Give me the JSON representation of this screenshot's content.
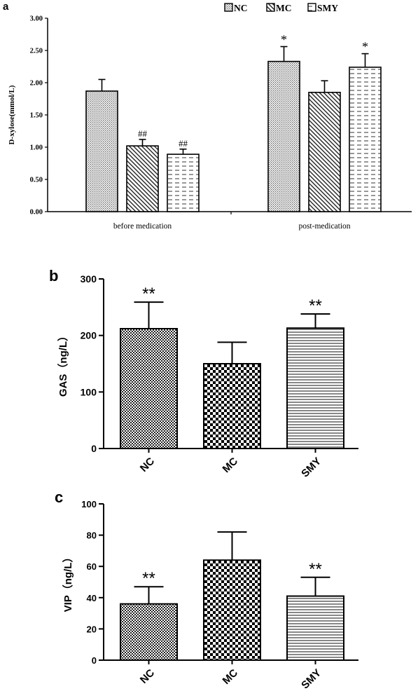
{
  "chart_data": [
    {
      "panel_label": "a",
      "type": "bar",
      "ylabel": "D-xylose(mmol/L)",
      "ylim": [
        0,
        3.0
      ],
      "yticks": [
        "0.00",
        "0.50",
        "1.00",
        "1.50",
        "2.00",
        "2.50",
        "3.00"
      ],
      "groups": [
        "before medication",
        "post-medication"
      ],
      "legend": [
        "NC",
        "MC",
        "SMY"
      ],
      "legend_position": "top-right",
      "series": [
        {
          "name": "NC",
          "values": [
            1.87,
            2.33
          ],
          "errors": [
            0.18,
            0.23
          ],
          "annotations": [
            "",
            "*"
          ]
        },
        {
          "name": "MC",
          "values": [
            1.02,
            1.85
          ],
          "errors": [
            0.1,
            0.18
          ],
          "annotations": [
            "##",
            ""
          ]
        },
        {
          "name": "SMY",
          "values": [
            0.89,
            2.24
          ],
          "errors": [
            0.08,
            0.21
          ],
          "annotations": [
            "##",
            "*"
          ]
        }
      ]
    },
    {
      "panel_label": "b",
      "type": "bar",
      "ylabel": "GAS（ng/L）",
      "ylim": [
        0,
        300
      ],
      "yticks": [
        "0",
        "100",
        "200",
        "300"
      ],
      "categories": [
        "NC",
        "MC",
        "SMY"
      ],
      "values": [
        212,
        150,
        213
      ],
      "errors": [
        47,
        38,
        25
      ],
      "annotations": [
        "**",
        "",
        "**"
      ]
    },
    {
      "panel_label": "c",
      "type": "bar",
      "ylabel": "VIP（ng/L）",
      "ylim": [
        0,
        100
      ],
      "yticks": [
        "0",
        "20",
        "40",
        "60",
        "80",
        "100"
      ],
      "categories": [
        "NC",
        "MC",
        "SMY"
      ],
      "values": [
        36,
        64,
        41
      ],
      "errors": [
        11,
        18,
        12
      ],
      "annotations": [
        "**",
        "",
        "**"
      ]
    }
  ]
}
